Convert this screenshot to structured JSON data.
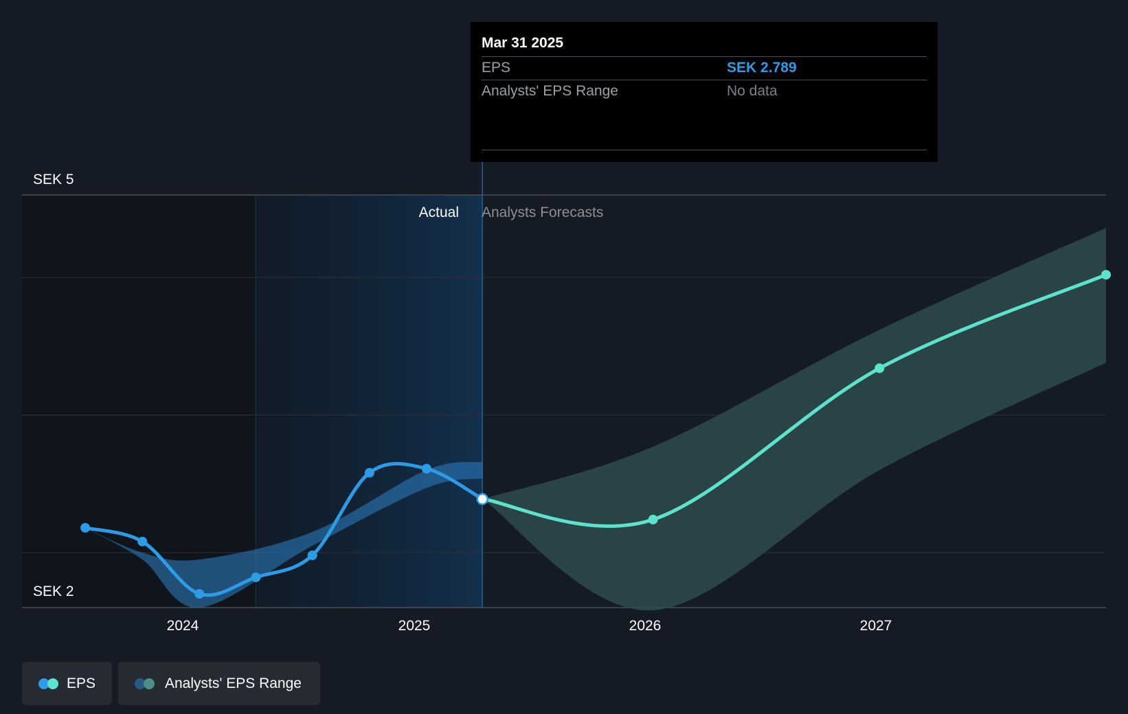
{
  "chart_data": {
    "type": "line",
    "currency": "SEK",
    "y_axis_labels": [
      "SEK 5",
      "SEK 2"
    ],
    "ylim": [
      2,
      5
    ],
    "x_ticks": [
      {
        "label": "2024",
        "date": "2024-01-01"
      },
      {
        "label": "2025",
        "date": "2025-01-01"
      },
      {
        "label": "2026",
        "date": "2026-01-01"
      },
      {
        "label": "2027",
        "date": "2027-01-01"
      }
    ],
    "xlim": [
      "2023-03-20",
      "2027-12-31"
    ],
    "highlight_start": "2024-03-31",
    "divider_date": "2025-03-31",
    "section_labels": {
      "actual": "Actual",
      "forecast": "Analysts Forecasts"
    },
    "grid": true,
    "series": [
      {
        "name": "EPS",
        "kind": "actual",
        "color": "#2d9be6",
        "points": [
          {
            "x": "2023-06-30",
            "y": 2.58
          },
          {
            "x": "2023-09-30",
            "y": 2.48
          },
          {
            "x": "2023-12-31",
            "y": 2.1
          },
          {
            "x": "2024-03-31",
            "y": 2.22
          },
          {
            "x": "2024-06-30",
            "y": 2.38
          },
          {
            "x": "2024-09-30",
            "y": 2.98
          },
          {
            "x": "2024-12-31",
            "y": 3.01
          },
          {
            "x": "2025-03-31",
            "y": 2.789
          }
        ]
      },
      {
        "name": "EPS",
        "kind": "forecast",
        "color": "#5de3cb",
        "points": [
          {
            "x": "2025-03-31",
            "y": 2.789
          },
          {
            "x": "2025-12-31",
            "y": 2.64
          },
          {
            "x": "2026-12-31",
            "y": 3.74
          },
          {
            "x": "2027-12-31",
            "y": 4.42
          }
        ]
      }
    ],
    "ranges": [
      {
        "name": "Analysts' EPS Range",
        "kind": "actual",
        "color": "#2d7fc4",
        "points": [
          {
            "x": "2023-06-30",
            "low": 2.58,
            "high": 2.58
          },
          {
            "x": "2023-09-30",
            "low": 2.35,
            "high": 2.4
          },
          {
            "x": "2023-12-31",
            "low": 2.0,
            "high": 2.35
          },
          {
            "x": "2024-06-30",
            "low": 2.45,
            "high": 2.55
          },
          {
            "x": "2024-12-31",
            "low": 2.87,
            "high": 3.0
          },
          {
            "x": "2025-03-31",
            "low": 2.94,
            "high": 3.06
          }
        ]
      },
      {
        "name": "Analysts' EPS Range",
        "kind": "forecast",
        "color": "#2e4a4c",
        "points": [
          {
            "x": "2025-03-31",
            "low": 2.789,
            "high": 2.789
          },
          {
            "x": "2025-12-31",
            "low": 1.98,
            "high": 3.17
          },
          {
            "x": "2026-12-31",
            "low": 3.0,
            "high": 4.02
          },
          {
            "x": "2027-12-31",
            "low": 3.78,
            "high": 4.76
          }
        ]
      }
    ],
    "legend": [
      {
        "label": "EPS",
        "colors": [
          "#2d9be6",
          "#5de3cb"
        ]
      },
      {
        "label": "Analysts' EPS Range",
        "colors": [
          "#2a5a85",
          "#4c8f87"
        ]
      }
    ],
    "legend_position": "bottom-left",
    "tooltip": {
      "date": "Mar 31 2025",
      "rows": [
        {
          "label": "EPS",
          "value": "SEK 2.789"
        },
        {
          "label": "Analysts' EPS Range",
          "value": "No data"
        }
      ]
    }
  }
}
